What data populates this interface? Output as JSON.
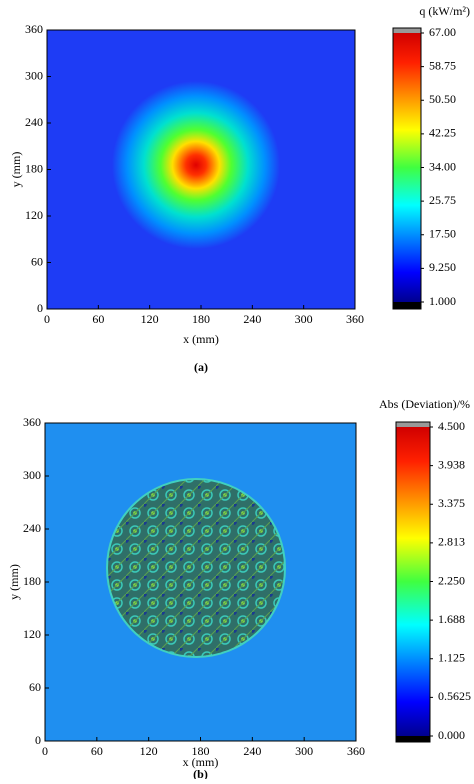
{
  "chart_data": [
    {
      "type": "heatmap",
      "caption": "(a)",
      "colorbar_title": "q (kW/m²)",
      "xlabel": "x (mm)",
      "ylabel": "y (mm)",
      "xlim": [
        0,
        360
      ],
      "xticks": [
        0,
        60,
        120,
        180,
        240,
        300,
        360
      ],
      "ylim": [
        0,
        360
      ],
      "yticks": [
        0,
        60,
        120,
        180,
        240,
        300,
        360
      ],
      "zlim": [
        1,
        67
      ],
      "zticks": [
        {
          "value": 1,
          "label": "1.000"
        },
        {
          "value": 9.25,
          "label": "9.250"
        },
        {
          "value": 17.5,
          "label": "17.50"
        },
        {
          "value": 25.75,
          "label": "25.75"
        },
        {
          "value": 34,
          "label": "34.00"
        },
        {
          "value": 42.25,
          "label": "42.25"
        },
        {
          "value": 50.5,
          "label": "50.50"
        },
        {
          "value": 58.75,
          "label": "58.75"
        },
        {
          "value": 67,
          "label": "67.00"
        }
      ],
      "colormap": "jet"
    },
    {
      "type": "heatmap",
      "caption": "(b)",
      "colorbar_title": "Abs (Deviation)/%",
      "xlabel": "x (mm)",
      "ylabel": "y (mm)",
      "xlim": [
        0,
        360
      ],
      "xticks": [
        0,
        60,
        120,
        180,
        240,
        300,
        360
      ],
      "ylim": [
        0,
        360
      ],
      "yticks": [
        0,
        60,
        120,
        180,
        240,
        300,
        360
      ],
      "zlim": [
        0,
        4.5
      ],
      "zticks": [
        {
          "value": 0,
          "label": "0.000"
        },
        {
          "value": 0.5625,
          "label": "0.5625"
        },
        {
          "value": 1.125,
          "label": "1.125"
        },
        {
          "value": 1.6875,
          "label": "1.688"
        },
        {
          "value": 2.25,
          "label": "2.250"
        },
        {
          "value": 2.8125,
          "label": "2.813"
        },
        {
          "value": 3.375,
          "label": "3.375"
        },
        {
          "value": 3.9375,
          "label": "3.938"
        },
        {
          "value": 4.5,
          "label": "4.500"
        }
      ],
      "colormap": "jet"
    }
  ]
}
